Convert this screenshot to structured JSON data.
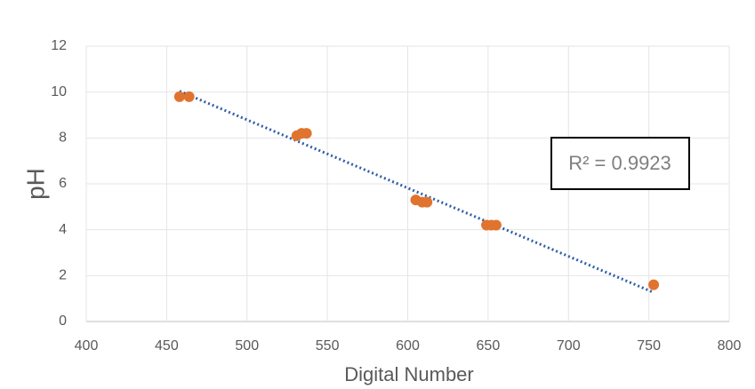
{
  "chart_data": {
    "type": "scatter",
    "x_label": "Digital Number",
    "y_label": "pH",
    "series": [
      {
        "name": null,
        "color": "#e0742f",
        "x": [
          458,
          464,
          531,
          534,
          537,
          605,
          609,
          612,
          649,
          652,
          655,
          753
        ],
        "values": [
          9.8,
          9.8,
          8.1,
          8.2,
          8.2,
          5.3,
          5.2,
          5.2,
          4.2,
          4.2,
          4.2,
          1.6
        ]
      }
    ],
    "trendline": {
      "type": "linear",
      "color": "#2e5ea8"
    },
    "annotation": "R² = 0.9923",
    "xlim": [
      400,
      800
    ],
    "xticks": [
      400,
      450,
      500,
      550,
      600,
      650,
      700,
      750,
      800
    ],
    "ylim": [
      0,
      12
    ],
    "yticks": [
      0,
      2,
      4,
      6,
      8,
      10,
      12
    ],
    "grid": true
  }
}
